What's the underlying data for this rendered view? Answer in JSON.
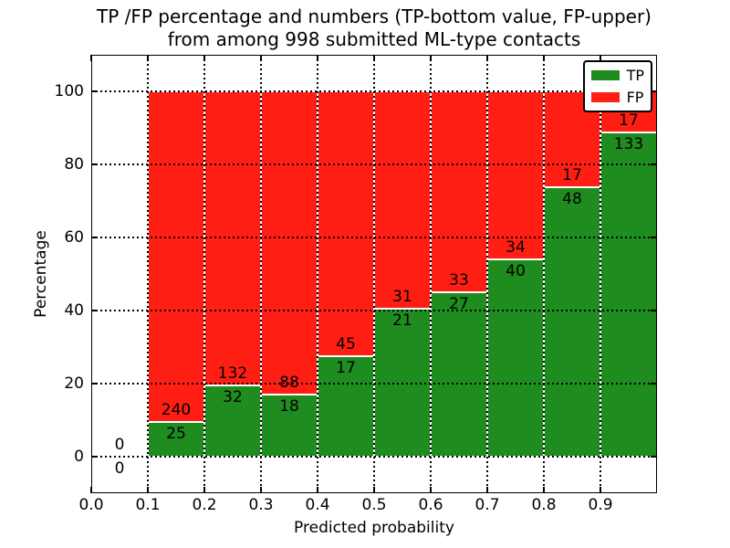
{
  "figure": {
    "title_line1": "TP /FP percentage and numbers (TP-bottom value, FP-upper)",
    "title_line2": "from among 998 submitted ML-type contacts"
  },
  "axes": {
    "xlabel": "Predicted probability",
    "ylabel": "Percentage",
    "x_tick_labels": [
      "0.0",
      "0.1",
      "0.2",
      "0.3",
      "0.4",
      "0.5",
      "0.6",
      "0.7",
      "0.8",
      "0.9"
    ],
    "y_tick_labels": [
      "0",
      "20",
      "40",
      "60",
      "80",
      "100"
    ]
  },
  "legend": {
    "entries": [
      {
        "label": "TP",
        "color": "#1e8c1e"
      },
      {
        "label": "FP",
        "color": "#ff1e14"
      }
    ]
  },
  "colors": {
    "tp_green": "#1e8c1e",
    "fp_red": "#ff1e14",
    "bar_edge": "#ffffff",
    "grid": "#000000",
    "background": "#ffffff"
  },
  "chart_data": {
    "type": "bar",
    "stacked": true,
    "normalized_to_percent": true,
    "title": "TP /FP percentage and numbers (TP-bottom value, FP-upper) from among 998 submitted ML-type contacts",
    "xlabel": "Predicted probability",
    "ylabel": "Percentage",
    "xlim": [
      0.0,
      1.0
    ],
    "ylim": [
      -10,
      110
    ],
    "grid": "dotted black, x ticks every 0.1 and y ticks every 20",
    "legend_position": "upper right",
    "total_contacts": 998,
    "bin_edges": [
      0.0,
      0.1,
      0.2,
      0.3,
      0.4,
      0.5,
      0.6,
      0.7,
      0.8,
      0.9,
      1.0
    ],
    "series": [
      {
        "name": "TP",
        "color": "#1e8c1e",
        "counts": [
          0,
          25,
          32,
          18,
          17,
          21,
          27,
          40,
          48,
          133
        ]
      },
      {
        "name": "FP",
        "color": "#ff1e14",
        "counts": [
          0,
          240,
          132,
          88,
          45,
          31,
          33,
          34,
          17,
          17
        ]
      }
    ],
    "tp_percent_per_bin": [
      0,
      9.43,
      19.51,
      16.98,
      27.42,
      40.38,
      45.0,
      54.05,
      73.85,
      88.67
    ],
    "label_note": "each bar shows FP count above the TP/FP boundary and TP count below it"
  }
}
